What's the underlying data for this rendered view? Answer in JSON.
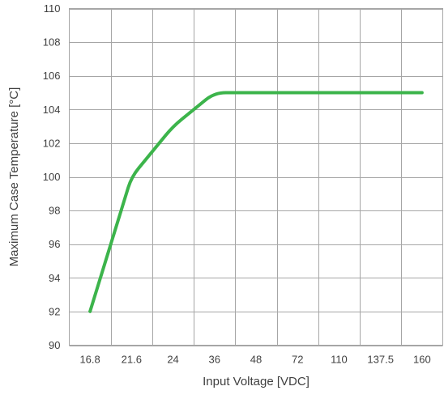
{
  "chart_data": {
    "type": "line",
    "title": "",
    "xlabel": "Input Voltage [VDC]",
    "ylabel": "Maximum Case Temperature [°C]",
    "categories": [
      "16.8",
      "21.6",
      "24",
      "36",
      "48",
      "72",
      "110",
      "137.5",
      "160"
    ],
    "ylim": [
      90,
      110
    ],
    "yticks": [
      "90",
      "92",
      "94",
      "96",
      "98",
      "100",
      "102",
      "104",
      "106",
      "108",
      "110"
    ],
    "grid": true,
    "legend": "none",
    "series": [
      {
        "color": "#3cb44b",
        "points": [
          {
            "x": "16.8",
            "y": 92
          },
          {
            "x": "21.6",
            "y": 100
          },
          {
            "x": "24",
            "y": 103
          },
          {
            "x": "36",
            "y": 105
          },
          {
            "x": "48",
            "y": 105
          },
          {
            "x": "72",
            "y": 105
          },
          {
            "x": "110",
            "y": 105
          },
          {
            "x": "137.5",
            "y": 105
          },
          {
            "x": "160",
            "y": 105
          }
        ]
      }
    ]
  }
}
